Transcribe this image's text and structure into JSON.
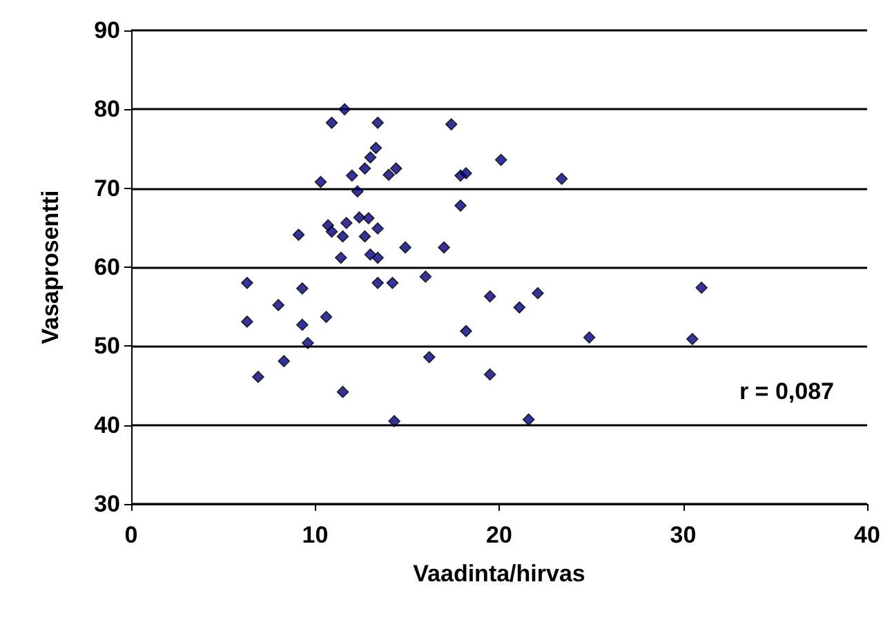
{
  "chart_data": {
    "type": "scatter",
    "xlabel": "Vaadinta/hirvas",
    "ylabel": "Vasaprosentti",
    "annotations": [
      "r = 0,087"
    ],
    "xlim": [
      0,
      40
    ],
    "xticks": [
      0,
      10,
      20,
      30,
      40
    ],
    "ylim": [
      30,
      90
    ],
    "yticks": [
      30,
      40,
      50,
      60,
      70,
      80,
      90
    ],
    "grid": "y",
    "marker": "diamond",
    "series": [
      {
        "color": "#000080",
        "x": [
          11.6,
          10.9,
          13.4,
          17.4,
          13.3,
          13.0,
          12.7,
          12.0,
          14.4,
          14.0,
          10.3,
          12.3,
          17.9,
          18.2,
          17.9,
          20.1,
          23.4,
          9.1,
          10.7,
          10.9,
          11.7,
          11.5,
          12.4,
          12.9,
          13.4,
          12.7,
          11.4,
          13.0,
          13.4,
          14.9,
          17.0,
          13.4,
          14.2,
          16.0,
          6.3,
          9.3,
          8.0,
          6.3,
          9.3,
          10.6,
          9.6,
          8.3,
          6.9,
          11.5,
          19.5,
          21.1,
          22.1,
          31.0,
          18.2,
          24.9,
          30.5,
          16.2,
          19.5,
          14.3,
          21.6
        ],
        "values": [
          80.0,
          78.3,
          78.3,
          78.1,
          75.1,
          73.9,
          72.5,
          71.6,
          72.5,
          71.7,
          70.8,
          69.6,
          71.6,
          71.9,
          67.8,
          73.6,
          71.2,
          64.1,
          65.3,
          64.5,
          65.6,
          63.9,
          66.3,
          66.2,
          64.9,
          63.9,
          61.2,
          61.6,
          61.2,
          62.5,
          62.5,
          58.0,
          58.0,
          58.8,
          58.0,
          57.3,
          55.2,
          53.1,
          52.7,
          53.7,
          50.4,
          48.1,
          46.1,
          44.2,
          56.3,
          54.9,
          56.7,
          57.4,
          51.9,
          51.1,
          50.9,
          48.6,
          46.4,
          40.5,
          40.7
        ]
      }
    ]
  }
}
